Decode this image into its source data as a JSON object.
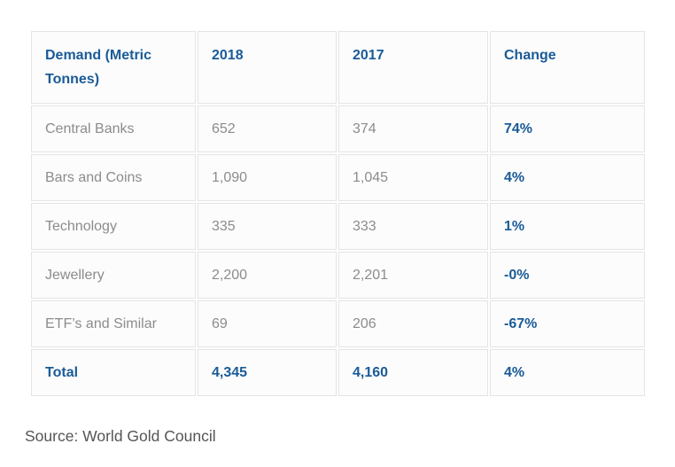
{
  "table": {
    "columns": [
      "Demand (Metric Tonnes)",
      "2018",
      "2017",
      "Change"
    ],
    "rows": [
      {
        "label": "Central Banks",
        "y2018": "652",
        "y2017": "374",
        "change": "74%",
        "total": false
      },
      {
        "label": "Bars and Coins",
        "y2018": "1,090",
        "y2017": "1,045",
        "change": "4%",
        "total": false
      },
      {
        "label": "Technology",
        "y2018": "335",
        "y2017": "333",
        "change": "1%",
        "total": false
      },
      {
        "label": "Jewellery",
        "y2018": "2,200",
        "y2017": "2,201",
        "change": "-0%",
        "total": false
      },
      {
        "label": "ETF’s and Similar",
        "y2018": "69",
        "y2017": "206",
        "change": "-67%",
        "total": false
      },
      {
        "label": "Total",
        "y2018": "4,345",
        "y2017": "4,160",
        "change": "4%",
        "total": true
      }
    ]
  },
  "source": "Source: World Gold Council",
  "colors": {
    "accent_blue": "#1a5b98",
    "body_gray": "#8c8c8c",
    "source_gray": "#555555",
    "border_gray": "#e4e4e4",
    "cell_background": "#fcfcfc"
  },
  "chart_data": {
    "type": "table",
    "title": "Demand (Metric Tonnes)",
    "columns": [
      "Demand (Metric Tonnes)",
      "2018",
      "2017",
      "Change"
    ],
    "rows": [
      [
        "Central Banks",
        652,
        374,
        "74%"
      ],
      [
        "Bars and Coins",
        1090,
        1045,
        "4%"
      ],
      [
        "Technology",
        335,
        333,
        "1%"
      ],
      [
        "Jewellery",
        2200,
        2201,
        "-0%"
      ],
      [
        "ETF’s and Similar",
        69,
        206,
        "-67%"
      ],
      [
        "Total",
        4345,
        4160,
        "4%"
      ]
    ],
    "source": "Source: World Gold Council"
  }
}
